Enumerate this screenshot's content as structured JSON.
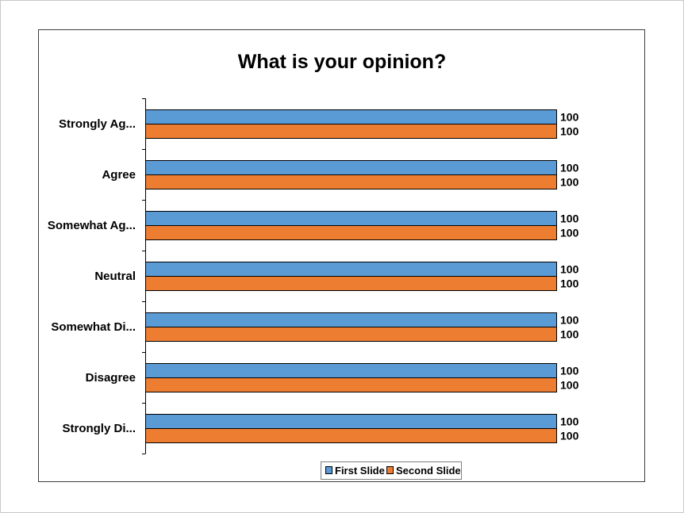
{
  "chart_data": {
    "type": "bar",
    "orientation": "horizontal",
    "title": "What is your opinion?",
    "categories": [
      "Strongly Ag...",
      "Agree",
      "Somewhat Ag...",
      "Neutral",
      "Somewhat Di...",
      "Disagree",
      "Strongly Di..."
    ],
    "series": [
      {
        "name": "First Slide",
        "color": "#5b9bd5",
        "values": [
          100,
          100,
          100,
          100,
          100,
          100,
          100
        ]
      },
      {
        "name": "Second Slide",
        "color": "#ed7d31",
        "values": [
          100,
          100,
          100,
          100,
          100,
          100,
          100
        ]
      }
    ],
    "xlim": [
      0,
      100
    ],
    "grid": false,
    "legend_position": "bottom",
    "data_labels": true
  }
}
